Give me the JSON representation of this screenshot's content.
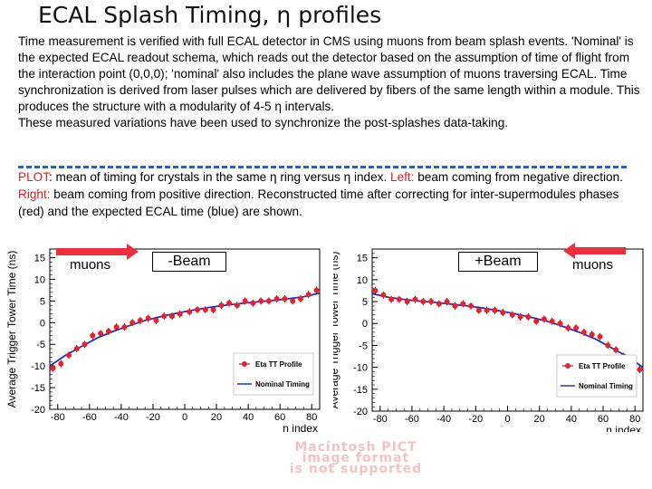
{
  "slide": {
    "title": "ECAL Splash Timing, η profiles",
    "paragraph1": "Time measurement is verified with full ECAL detector in CMS using muons from beam splash events. 'Nominal' is the expected ECAL readout schema, which reads out the detector based on the assumption of time of flight from the interaction point (0,0,0); 'nominal' also includes the plane wave assumption of muons traversing ECAL. Time synchronization is derived from laser pulses which are delivered by fibers of the same length within a module. This produces the structure with a modularity of 4-5 η intervals.",
    "paragraph2": "These measured variations have been used to synchronize the post-splashes data-taking.",
    "plot_label": "PLOT",
    "plot_text1": ": mean of timing for crystals in the same  η ring versus η index. ",
    "plot_left_label": "Left:",
    "plot_text2": " beam coming from negative direction. ",
    "plot_right_label": "Right:",
    "plot_text3": " beam coming from positive direction. Reconstructed time after correcting for inter-supermodules phases (red) and the expected ECAL time (blue) are shown.",
    "pict_line1": "Macintosh PICT",
    "pict_line2": "image format",
    "pict_line3": "is not supported"
  },
  "annotations": {
    "left_muons": "muons",
    "left_beam": "-Beam",
    "right_beam": "+Beam",
    "right_muons": "muons"
  },
  "colors": {
    "arrow": "#e8303f",
    "profile": "#e8202a",
    "nominal": "#2233bb",
    "dash": "#2b5fd0"
  },
  "chart_data": [
    {
      "type": "scatter",
      "panel": "left",
      "ylabel": "Average Trigger Tower Time (ns)",
      "xlabel": "η index",
      "xlim": [
        -85,
        85
      ],
      "ylim": [
        -20,
        17
      ],
      "xticks": [
        -80,
        -60,
        -40,
        -20,
        0,
        20,
        40,
        60,
        80
      ],
      "yticks": [
        15,
        10,
        5,
        0,
        -5,
        -10,
        -15,
        -20
      ],
      "legend": {
        "position": "bottom-right",
        "profile_label": "Eta TT Profile",
        "nominal_label": "Nominal Timing"
      },
      "series": [
        {
          "name": "Eta TT Profile",
          "x": [
            -83,
            -78,
            -73,
            -68,
            -63,
            -58,
            -53,
            -48,
            -43,
            -38,
            -33,
            -28,
            -23,
            -18,
            -13,
            -8,
            -3,
            3,
            8,
            13,
            18,
            23,
            28,
            33,
            38,
            43,
            48,
            53,
            58,
            63,
            68,
            73,
            78,
            83
          ],
          "values": [
            -10.5,
            -9.5,
            -7.5,
            -6.0,
            -5.0,
            -3.0,
            -2.5,
            -2.0,
            -1.0,
            -1.0,
            0.0,
            0.5,
            1.0,
            0.5,
            1.5,
            1.5,
            2.0,
            2.5,
            3.0,
            3.0,
            3.0,
            4.0,
            4.5,
            4.0,
            5.0,
            4.5,
            5.0,
            5.0,
            5.5,
            5.5,
            5.0,
            5.5,
            6.5,
            7.5
          ]
        },
        {
          "name": "Nominal Timing",
          "x": [
            -85,
            -75,
            -65,
            -55,
            -45,
            -35,
            -25,
            -15,
            -5,
            5,
            15,
            25,
            35,
            45,
            55,
            65,
            75,
            85
          ],
          "values": [
            -10.0,
            -7.5,
            -5.5,
            -3.5,
            -2.0,
            -0.7,
            0.5,
            1.4,
            2.2,
            2.9,
            3.5,
            4.0,
            4.4,
            4.8,
            5.1,
            5.5,
            6.0,
            6.8
          ]
        }
      ]
    },
    {
      "type": "scatter",
      "panel": "right",
      "ylabel": "Average Trigger Tower Time (ns)",
      "xlabel": "η index",
      "xlim": [
        -85,
        85
      ],
      "ylim": [
        -20,
        17
      ],
      "xticks": [
        -80,
        -60,
        -40,
        -20,
        0,
        20,
        40,
        60,
        80
      ],
      "yticks": [
        15,
        10,
        5,
        0,
        -5,
        -10,
        -15,
        -20
      ],
      "legend": {
        "position": "bottom-right",
        "profile_label": "Eta TT Profile",
        "nominal_label": "Nominal Timing"
      },
      "series": [
        {
          "name": "Eta TT Profile",
          "x": [
            -83,
            -78,
            -73,
            -68,
            -63,
            -58,
            -53,
            -48,
            -43,
            -38,
            -33,
            -28,
            -23,
            -18,
            -13,
            -8,
            -3,
            3,
            8,
            13,
            18,
            23,
            28,
            33,
            38,
            43,
            48,
            53,
            58,
            63,
            68,
            73,
            78,
            83
          ],
          "values": [
            7.5,
            6.5,
            5.5,
            5.5,
            5.0,
            5.5,
            5.0,
            5.0,
            4.5,
            5.0,
            4.0,
            4.5,
            4.0,
            3.0,
            3.0,
            3.0,
            2.5,
            2.0,
            1.5,
            1.5,
            0.5,
            1.0,
            0.5,
            0.0,
            -1.0,
            -1.0,
            -2.0,
            -2.5,
            -3.0,
            -5.0,
            -6.0,
            -7.5,
            -9.5,
            -10.5
          ]
        },
        {
          "name": "Nominal Timing",
          "x": [
            -85,
            -75,
            -65,
            -55,
            -45,
            -35,
            -25,
            -15,
            -5,
            5,
            15,
            25,
            35,
            45,
            55,
            65,
            75,
            85
          ],
          "values": [
            6.8,
            6.0,
            5.5,
            5.1,
            4.8,
            4.4,
            4.0,
            3.5,
            2.9,
            2.2,
            1.4,
            0.5,
            -0.7,
            -2.0,
            -3.5,
            -5.5,
            -7.5,
            -10.0
          ]
        }
      ]
    }
  ]
}
